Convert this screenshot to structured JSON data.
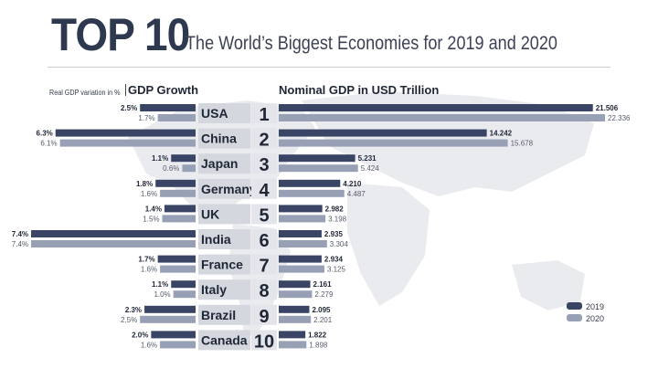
{
  "header": {
    "title_big": "TOP 10",
    "title_sub": "The World’s Biggest Economies for 2019 and 2020"
  },
  "labels": {
    "growth_note": "Real GDP variation in %",
    "growth_header": "GDP Growth",
    "gdp_header": "Nominal GDP in USD Trillion"
  },
  "colors": {
    "series_2019": "#3a4566",
    "series_2020": "#98a0b6",
    "rank_box": "#e3e5ea",
    "country_box": "#d4d7de",
    "title": "#2e3950"
  },
  "chart_data": [
    {
      "type": "bar",
      "orientation": "horizontal",
      "title": "Nominal GDP in USD Trillion",
      "categories": [
        "USA",
        "China",
        "Japan",
        "Germany",
        "UK",
        "India",
        "France",
        "Italy",
        "Brazil",
        "Canada"
      ],
      "ranks": [
        "1",
        "2",
        "3",
        "4",
        "5",
        "6",
        "7",
        "8",
        "9",
        "10"
      ],
      "series": [
        {
          "name": "2019",
          "values": [
            21.506,
            14.242,
            5.231,
            4.21,
            2.982,
            2.935,
            2.934,
            2.161,
            2.095,
            1.822
          ],
          "labels": [
            "21.506",
            "14.242",
            "5.231",
            "4.210",
            "2.982",
            "2.935",
            "2.934",
            "2.161",
            "2.095",
            "1.822"
          ]
        },
        {
          "name": "2020",
          "values": [
            22.336,
            15.678,
            5.424,
            4.487,
            3.198,
            3.304,
            3.125,
            2.279,
            2.201,
            1.898
          ],
          "labels": [
            "22.336",
            "15.678",
            "5.424",
            "4.487",
            "3.198",
            "3.304",
            "3.125",
            "2.279",
            "2.201",
            "1.898"
          ]
        }
      ],
      "legend": "bottom-right"
    },
    {
      "type": "bar",
      "orientation": "horizontal",
      "title": "GDP Growth",
      "subtitle": "Real GDP variation in %",
      "categories": [
        "USA",
        "China",
        "Japan",
        "Germany",
        "UK",
        "India",
        "France",
        "Italy",
        "Brazil",
        "Canada"
      ],
      "series": [
        {
          "name": "2019",
          "values": [
            2.5,
            6.3,
            1.1,
            1.8,
            1.4,
            7.4,
            1.7,
            1.1,
            2.3,
            2.0
          ],
          "labels": [
            "2.5%",
            "6.3%",
            "1.1%",
            "1.8%",
            "1.4%",
            "7.4%",
            "1.7%",
            "1.1%",
            "2.3%",
            "2.0%"
          ]
        },
        {
          "name": "2020",
          "values": [
            1.7,
            6.1,
            0.6,
            1.6,
            1.5,
            7.4,
            1.6,
            1.0,
            2.5,
            1.6
          ],
          "labels": [
            "1.7%",
            "6.1%",
            "0.6%",
            "1.6%",
            "1.5%",
            "7.4%",
            "1.6%",
            "1.0%",
            "2.5%",
            "1.6%"
          ]
        }
      ]
    }
  ]
}
